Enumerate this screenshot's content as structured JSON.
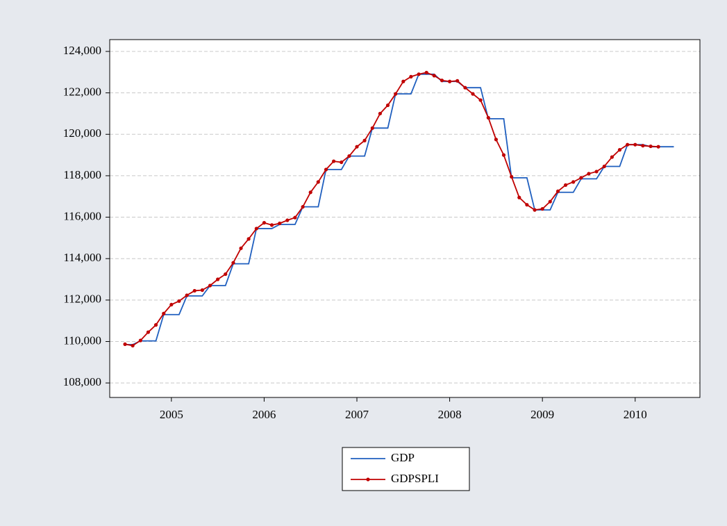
{
  "chart_data": {
    "type": "line",
    "x": [
      2005.0,
      2005.083,
      2005.167,
      2005.25,
      2005.333,
      2005.417,
      2005.5,
      2005.583,
      2005.667,
      2005.75,
      2005.833,
      2005.917,
      2006.0,
      2006.083,
      2006.167,
      2006.25,
      2006.333,
      2006.417,
      2006.5,
      2006.583,
      2006.667,
      2006.75,
      2006.833,
      2006.917,
      2007.0,
      2007.083,
      2007.167,
      2007.25,
      2007.333,
      2007.417,
      2007.5,
      2007.583,
      2007.667,
      2007.75,
      2007.833,
      2007.917,
      2008.0,
      2008.083,
      2008.167,
      2008.25,
      2008.333,
      2008.417,
      2008.5,
      2008.583,
      2008.667,
      2008.75,
      2008.833,
      2008.917,
      2009.0,
      2009.083,
      2009.167,
      2009.25,
      2009.333,
      2009.417,
      2009.5,
      2009.583,
      2009.667,
      2009.75,
      2009.833,
      2009.917,
      2010.0,
      2010.083,
      2010.167,
      2010.25,
      2010.333,
      2010.417,
      2010.5,
      2010.583,
      2010.667,
      2010.75,
      2010.833,
      2010.917
    ],
    "series": [
      {
        "name": "GDP",
        "color": "#1f5fbf",
        "markers": false,
        "values": [
          109850,
          109850,
          110030,
          110030,
          110030,
          111300,
          111300,
          111300,
          112200,
          112200,
          112200,
          112700,
          112700,
          112700,
          113750,
          113750,
          113750,
          115450,
          115450,
          115450,
          115650,
          115650,
          115650,
          116500,
          116500,
          116500,
          118300,
          118300,
          118300,
          118950,
          118950,
          118950,
          120300,
          120300,
          120300,
          121950,
          121950,
          121950,
          122900,
          122900,
          122900,
          122550,
          122550,
          122550,
          122250,
          122250,
          122250,
          120750,
          120750,
          120750,
          117900,
          117900,
          117900,
          116350,
          116350,
          116350,
          117200,
          117200,
          117200,
          117850,
          117850,
          117850,
          118450,
          118450,
          118450,
          119500,
          119500,
          119500,
          119400,
          119400,
          119400,
          119400
        ]
      },
      {
        "name": "GDPSPLI",
        "color": "#c00000",
        "markers": true,
        "values": [
          109870,
          109800,
          110050,
          110450,
          110800,
          111350,
          111780,
          111950,
          112230,
          112450,
          112480,
          112700,
          113000,
          113250,
          113800,
          114500,
          114950,
          115450,
          115730,
          115620,
          115700,
          115850,
          115980,
          116500,
          117200,
          117700,
          118300,
          118700,
          118650,
          118950,
          119400,
          119700,
          120300,
          121000,
          121400,
          121950,
          122550,
          122780,
          122900,
          122980,
          122830,
          122600,
          122550,
          122580,
          122250,
          121950,
          121650,
          120800,
          119750,
          119000,
          117950,
          116950,
          116600,
          116350,
          116400,
          116750,
          117250,
          117550,
          117700,
          117900,
          118100,
          118200,
          118450,
          118900,
          119250,
          119500,
          119500,
          119450,
          119420,
          119400,
          null,
          null
        ]
      }
    ],
    "xlim": [
      2004.835,
      2011.198
    ],
    "xticks": [
      {
        "value": 2005.5,
        "label": "2005"
      },
      {
        "value": 2006.5,
        "label": "2006"
      },
      {
        "value": 2007.5,
        "label": "2007"
      },
      {
        "value": 2008.5,
        "label": "2008"
      },
      {
        "value": 2009.5,
        "label": "2009"
      },
      {
        "value": 2010.5,
        "label": "2010"
      }
    ],
    "ylim": [
      107300,
      124570
    ],
    "yticks": [
      {
        "value": 108000,
        "label": "108,000"
      },
      {
        "value": 110000,
        "label": "110,000"
      },
      {
        "value": 112000,
        "label": "112,000"
      },
      {
        "value": 114000,
        "label": "114,000"
      },
      {
        "value": 116000,
        "label": "116,000"
      },
      {
        "value": 118000,
        "label": "118,000"
      },
      {
        "value": 120000,
        "label": "120,000"
      },
      {
        "value": 122000,
        "label": "122,000"
      },
      {
        "value": 124000,
        "label": "124,000"
      }
    ],
    "grid": true,
    "legend": "bottom"
  }
}
